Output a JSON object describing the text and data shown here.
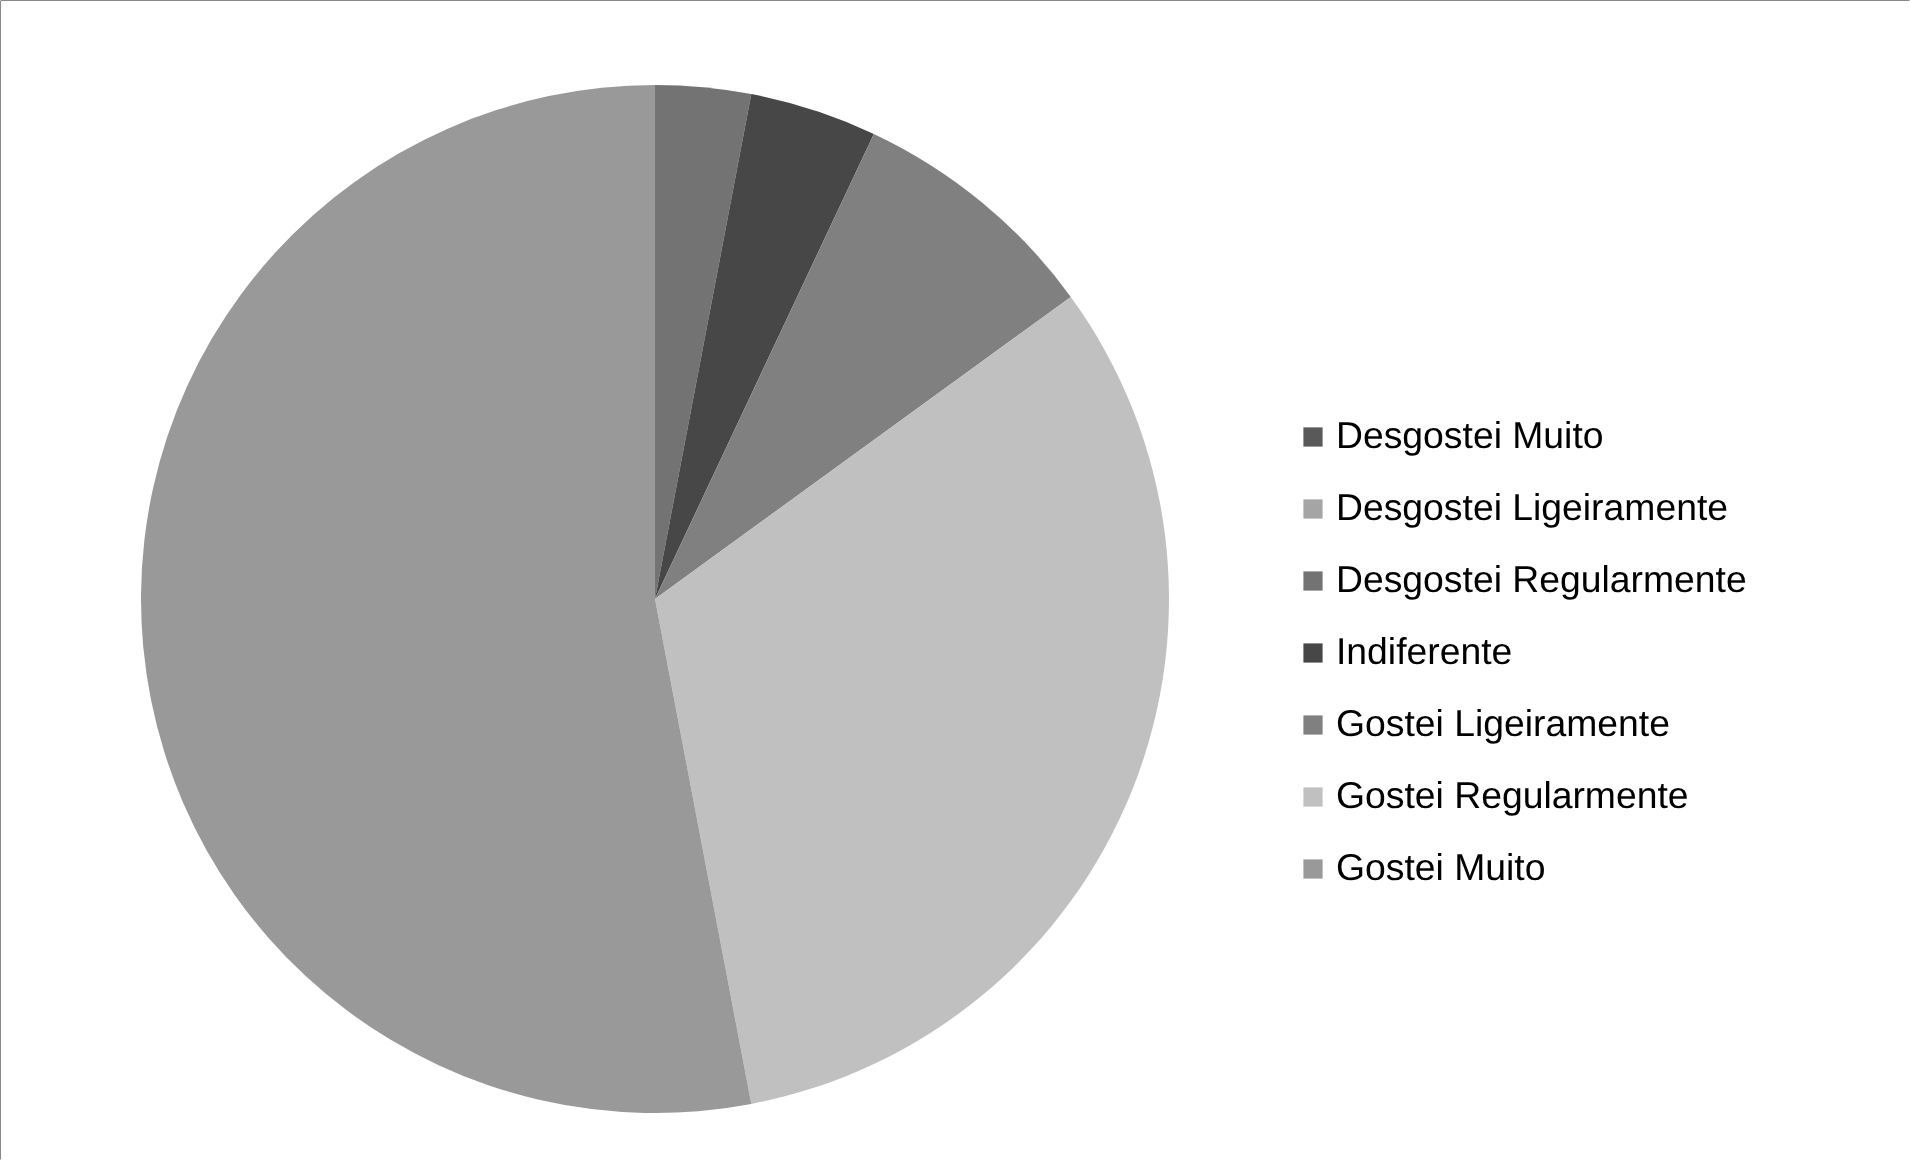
{
  "chart_data": {
    "type": "pie",
    "categories": [
      "Desgostei Muito",
      "Desgostei Ligeiramente",
      "Desgostei Regularmente",
      "Indiferente",
      "Gostei Ligeiramente",
      "Gostei Regularmente",
      "Gostei Muito"
    ],
    "values": [
      0,
      0,
      3,
      4,
      8,
      32,
      53
    ],
    "colors": [
      "#595959",
      "#a5a5a5",
      "#737373",
      "#474747",
      "#808080",
      "#c0c0c0",
      "#999999"
    ],
    "legend": "right"
  }
}
